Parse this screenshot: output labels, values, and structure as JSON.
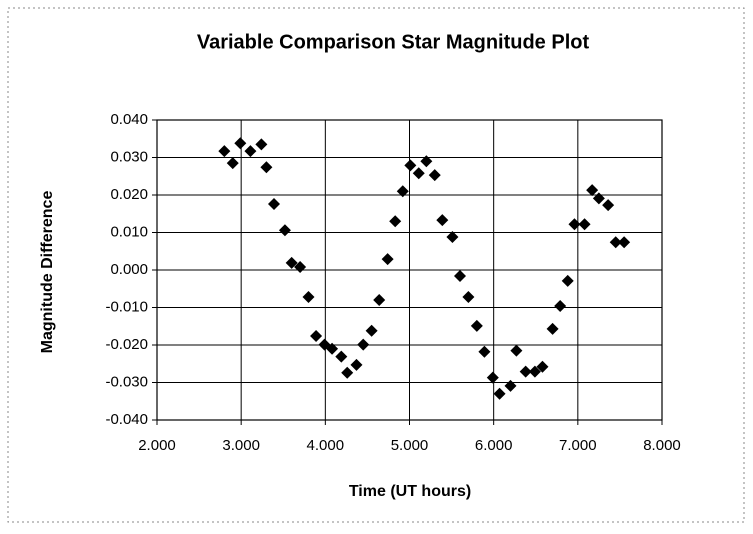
{
  "chart_data": {
    "type": "scatter",
    "title": "Variable Comparison Star Magnitude Plot",
    "x_label": "Time (UT hours)",
    "y_label": "Magnitude Difference",
    "color": "#000000",
    "grid": true,
    "xlim": [
      2,
      8
    ],
    "ylim": [
      -0.04,
      0.04
    ],
    "xticks": [
      {
        "value": 2,
        "label": "2.000"
      },
      {
        "value": 3,
        "label": "3.000"
      },
      {
        "value": 4,
        "label": "4.000"
      },
      {
        "value": 5,
        "label": "5.000"
      },
      {
        "value": 6,
        "label": "6.000"
      },
      {
        "value": 7,
        "label": "7.000"
      },
      {
        "value": 8,
        "label": "8.000"
      }
    ],
    "yticks": [
      {
        "value": -0.04,
        "label": "-0.040"
      },
      {
        "value": -0.03,
        "label": "-0.030"
      },
      {
        "value": -0.02,
        "label": "-0.020"
      },
      {
        "value": -0.01,
        "label": "-0.010"
      },
      {
        "value": 0,
        "label": "0.000"
      },
      {
        "value": 0.01,
        "label": "0.010"
      },
      {
        "value": 0.02,
        "label": "0.020"
      },
      {
        "value": 0.03,
        "label": "0.030"
      },
      {
        "value": 0.04,
        "label": "0.040"
      }
    ],
    "x": [
      2.8,
      2.9,
      2.99,
      3.11,
      3.24,
      3.3,
      3.39,
      3.52,
      3.6,
      3.7,
      3.8,
      3.89,
      3.99,
      4.08,
      4.19,
      4.26,
      4.37,
      4.45,
      4.55,
      4.64,
      4.74,
      4.83,
      4.92,
      5.01,
      5.11,
      5.2,
      5.3,
      5.39,
      5.51,
      5.6,
      5.7,
      5.8,
      5.89,
      5.99,
      6.07,
      6.2,
      6.27,
      6.38,
      6.49,
      6.58,
      6.7,
      6.79,
      6.88,
      6.96,
      7.08,
      7.17,
      7.25,
      7.36,
      7.45,
      7.55
    ],
    "y": [
      0.0317,
      0.0285,
      0.0338,
      0.0317,
      0.0335,
      0.0274,
      0.0176,
      0.0106,
      0.0019,
      0.0008,
      -0.0072,
      -0.0176,
      -0.0199,
      -0.021,
      -0.0231,
      -0.0274,
      -0.0253,
      -0.0199,
      -0.0162,
      -0.008,
      0.0029,
      0.013,
      0.021,
      0.0279,
      0.0258,
      0.029,
      0.0253,
      0.0133,
      0.0088,
      -0.0016,
      -0.0072,
      -0.0149,
      -0.0218,
      -0.0287,
      -0.033,
      -0.0309,
      -0.0215,
      -0.0271,
      -0.0271,
      -0.0258,
      -0.0157,
      -0.0096,
      -0.0029,
      0.0122,
      0.0122,
      0.0213,
      0.0191,
      0.0173,
      0.0074,
      0.0074
    ]
  }
}
